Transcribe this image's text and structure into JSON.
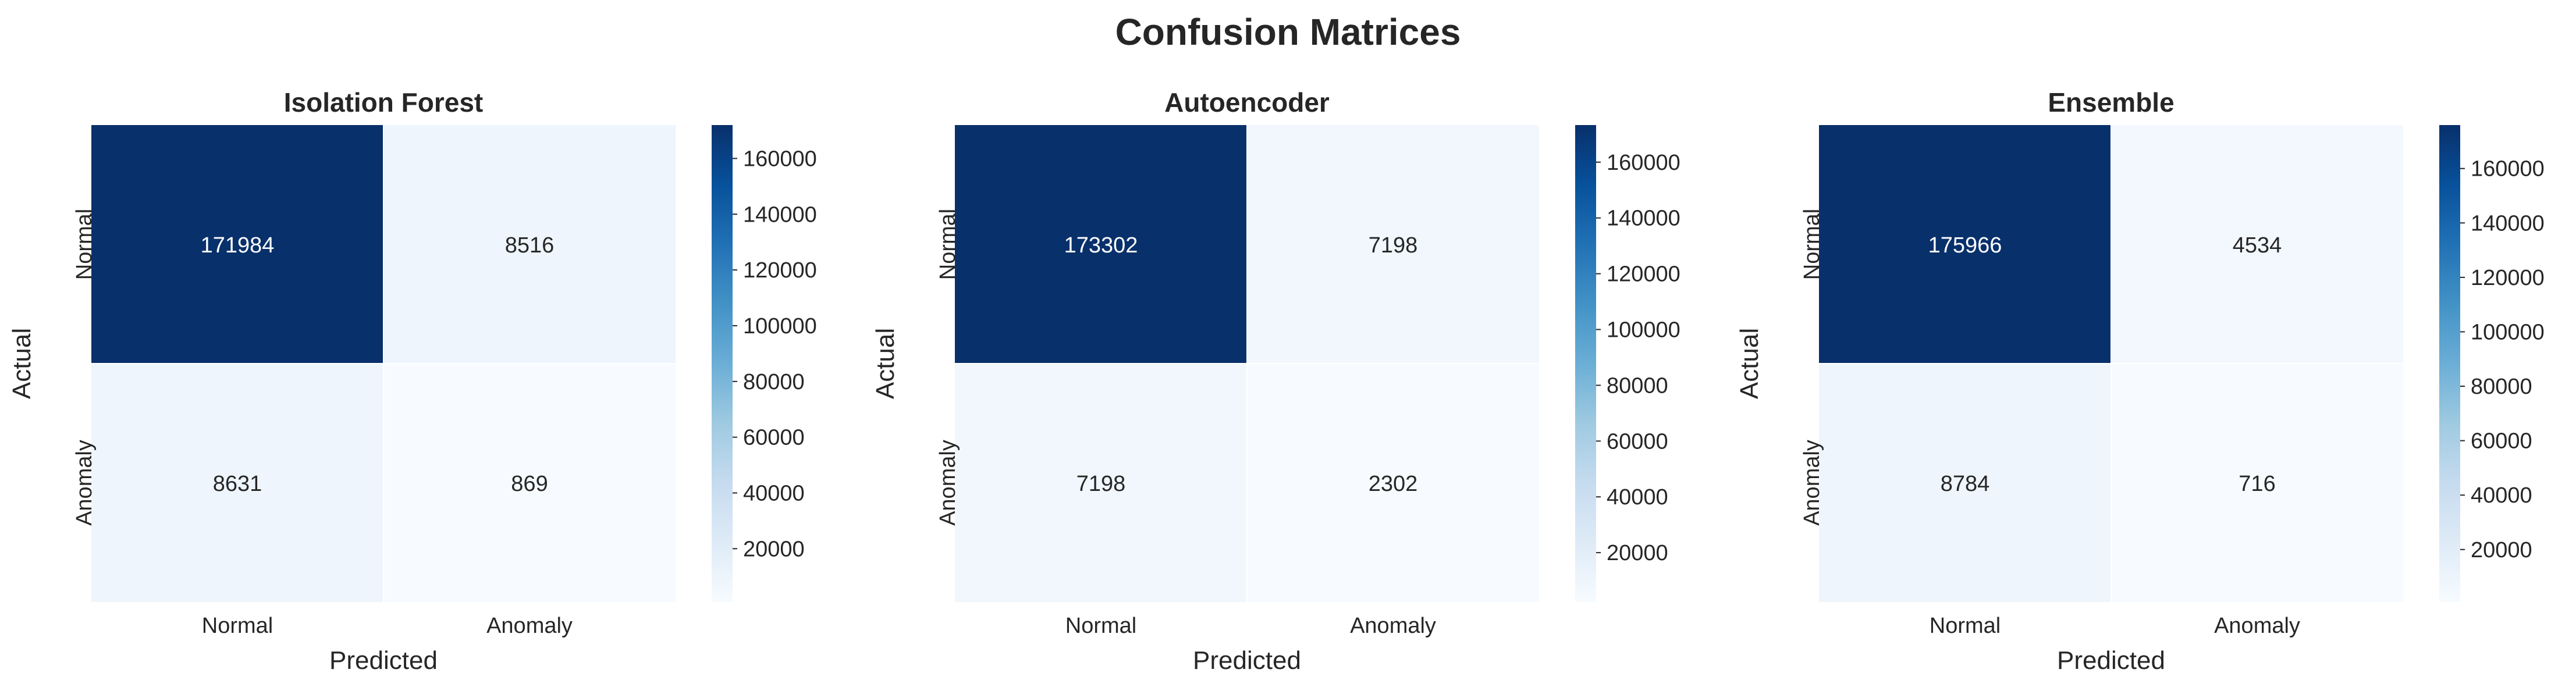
{
  "figure": {
    "title": "Confusion Matrices"
  },
  "chart_data": [
    {
      "type": "heatmap",
      "title": "Isolation Forest",
      "xlabel": "Predicted",
      "ylabel": "Actual",
      "x_categories": [
        "Normal",
        "Anomaly"
      ],
      "y_categories": [
        "Normal",
        "Anomaly"
      ],
      "values": [
        [
          171984,
          8516
        ],
        [
          8631,
          869
        ]
      ],
      "colormap": [
        "#f7fbff",
        "#deebf7",
        "#c6dbef",
        "#9ecae1",
        "#6baed6",
        "#4292c6",
        "#2171b5",
        "#08519c",
        "#08306b"
      ],
      "colorbar_ticks": [
        20000,
        40000,
        60000,
        80000,
        100000,
        120000,
        140000,
        160000
      ],
      "colorbar_range": [
        869,
        171984
      ]
    },
    {
      "type": "heatmap",
      "title": "Autoencoder",
      "xlabel": "Predicted",
      "ylabel": "Actual",
      "x_categories": [
        "Normal",
        "Anomaly"
      ],
      "y_categories": [
        "Normal",
        "Anomaly"
      ],
      "values": [
        [
          173302,
          7198
        ],
        [
          7198,
          2302
        ]
      ],
      "colormap": [
        "#f7fbff",
        "#deebf7",
        "#c6dbef",
        "#9ecae1",
        "#6baed6",
        "#4292c6",
        "#2171b5",
        "#08519c",
        "#08306b"
      ],
      "colorbar_ticks": [
        20000,
        40000,
        60000,
        80000,
        100000,
        120000,
        140000,
        160000
      ],
      "colorbar_range": [
        2302,
        173302
      ]
    },
    {
      "type": "heatmap",
      "title": "Ensemble",
      "xlabel": "Predicted",
      "ylabel": "Actual",
      "x_categories": [
        "Normal",
        "Anomaly"
      ],
      "y_categories": [
        "Normal",
        "Anomaly"
      ],
      "values": [
        [
          175966,
          4534
        ],
        [
          8784,
          716
        ]
      ],
      "colormap": [
        "#f7fbff",
        "#deebf7",
        "#c6dbef",
        "#9ecae1",
        "#6baed6",
        "#4292c6",
        "#2171b5",
        "#08519c",
        "#08306b"
      ],
      "colorbar_ticks": [
        20000,
        40000,
        60000,
        80000,
        100000,
        120000,
        140000,
        160000
      ],
      "colorbar_range": [
        716,
        175966
      ]
    }
  ]
}
